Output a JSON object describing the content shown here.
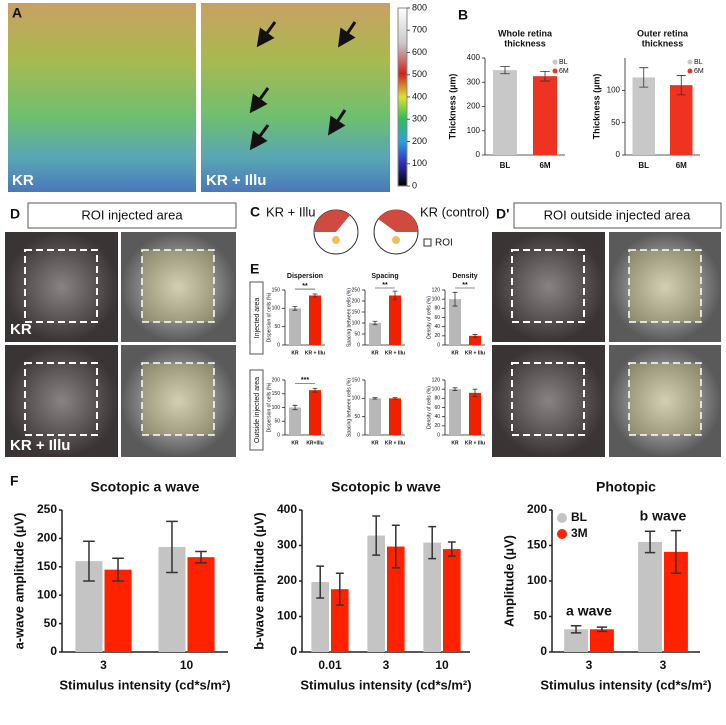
{
  "panels": {
    "a": {
      "label": "A",
      "left_label": "KR",
      "right_label": "KR + Illu"
    },
    "b": {
      "label": "B"
    },
    "c": {
      "label": "C",
      "left": "KR + Illu",
      "right": "KR (control)",
      "roi": "ROI"
    },
    "d": {
      "label": "D",
      "title": "ROI injected area",
      "top": "KR",
      "bottom": "KR + Illu"
    },
    "d_prime": {
      "label": "D'",
      "title": "ROI outside injected area"
    },
    "e": {
      "label": "E",
      "rows": [
        "Injected area",
        "Outside injected area"
      ]
    },
    "f": {
      "label": "F"
    }
  },
  "chart_data": [
    {
      "type": "colorbar",
      "ylim": [
        0,
        800
      ],
      "yticks": [
        0,
        100,
        200,
        300,
        400,
        500,
        600,
        700,
        800
      ]
    },
    {
      "type": "bar",
      "title": [
        "Whole retina",
        "thickness"
      ],
      "ylabel": "Thickness (µm)",
      "categories": [
        "BL",
        "6M"
      ],
      "values": [
        350,
        325
      ],
      "errors": [
        15,
        20
      ],
      "colors": [
        "#c8c8c8",
        "#ee3322"
      ],
      "legend": [
        "BL",
        "6M"
      ],
      "ylim": [
        0,
        400
      ],
      "yticks": [
        0,
        100,
        200,
        300,
        400
      ]
    },
    {
      "type": "bar",
      "title": [
        "Outer retina",
        "thickness"
      ],
      "ylabel": "Thickness (µm)",
      "categories": [
        "BL",
        "6M"
      ],
      "values": [
        120,
        108
      ],
      "errors": [
        15,
        15
      ],
      "colors": [
        "#c8c8c8",
        "#ee3322"
      ],
      "legend": [
        "BL",
        "6M"
      ],
      "ylim": [
        0,
        150
      ],
      "yticks": [
        0,
        50,
        100
      ]
    },
    {
      "type": "bar",
      "title": [
        "Dispersion"
      ],
      "ylabel": "Dispersion of cells (%)",
      "categories": [
        "KR",
        "KR + Illu"
      ],
      "values": [
        100,
        135
      ],
      "errors": [
        5,
        4
      ],
      "colors": [
        "#b8b8b8",
        "#ee2200"
      ],
      "significance": "**",
      "ylim": [
        0,
        150
      ],
      "yticks": [
        0,
        50,
        100,
        150
      ]
    },
    {
      "type": "bar",
      "title": [
        "Spacing"
      ],
      "ylabel": "Spacing between cells (%)",
      "categories": [
        "KR",
        "KR + Illu"
      ],
      "values": [
        100,
        225
      ],
      "errors": [
        8,
        20
      ],
      "colors": [
        "#b8b8b8",
        "#ee2200"
      ],
      "significance": "**",
      "ylim": [
        0,
        250
      ],
      "yticks": [
        0,
        50,
        100,
        150,
        200,
        250
      ]
    },
    {
      "type": "bar",
      "title": [
        "Density"
      ],
      "ylabel": "Density of cells (%)",
      "categories": [
        "KR",
        "KR + Illu"
      ],
      "values": [
        100,
        20
      ],
      "errors": [
        15,
        3
      ],
      "colors": [
        "#b8b8b8",
        "#ee2200"
      ],
      "significance": "**",
      "ylim": [
        0,
        120
      ],
      "yticks": [
        0,
        20,
        40,
        60,
        80,
        100,
        120
      ]
    },
    {
      "type": "bar",
      "ylabel": "Dispersion of cells (%)",
      "categories": [
        "KR",
        "KR+Illu"
      ],
      "values": [
        100,
        163
      ],
      "errors": [
        8,
        7
      ],
      "colors": [
        "#b8b8b8",
        "#ee2200"
      ],
      "significance": "***",
      "ylim": [
        0,
        200
      ],
      "yticks": [
        0,
        50,
        100,
        150,
        200
      ]
    },
    {
      "type": "bar",
      "ylabel": "Spacing between cells (%)",
      "categories": [
        "KR",
        "KR + Illu"
      ],
      "values": [
        100,
        100
      ],
      "errors": [
        2,
        2
      ],
      "colors": [
        "#b8b8b8",
        "#ee2200"
      ],
      "ylim": [
        0,
        150
      ],
      "yticks": [
        0,
        50,
        100,
        150
      ]
    },
    {
      "type": "bar",
      "ylabel": "Density of cells (%)",
      "categories": [
        "KR",
        "KR + Illu"
      ],
      "values": [
        100,
        92
      ],
      "errors": [
        3,
        8
      ],
      "colors": [
        "#b8b8b8",
        "#ee2200"
      ],
      "ylim": [
        0,
        120
      ],
      "yticks": [
        0,
        20,
        40,
        60,
        80,
        100,
        120
      ]
    },
    {
      "type": "bar",
      "title": [
        "Scotopic a wave"
      ],
      "ylabel": "a-wave amplitude (µV)",
      "xlabel": "Stimulus intensity  (cd*s/m²)",
      "categories": [
        "3",
        "10"
      ],
      "series": [
        {
          "color": "#c4c4c4",
          "values": [
            160,
            185
          ],
          "errors": [
            35,
            45
          ]
        },
        {
          "color": "#ff2200",
          "values": [
            145,
            167
          ],
          "errors": [
            20,
            10
          ]
        }
      ],
      "ylim": [
        0,
        250
      ],
      "yticks": [
        0,
        50,
        100,
        150,
        200,
        250
      ]
    },
    {
      "type": "bar",
      "title": [
        "Scotopic b wave"
      ],
      "ylabel": "b-wave amplitude (µV)",
      "xlabel": "Stimulus intensity  (cd*s/m²)",
      "categories": [
        "0.01",
        "3",
        "10"
      ],
      "series": [
        {
          "color": "#c4c4c4",
          "values": [
            197,
            328,
            308
          ],
          "errors": [
            45,
            55,
            45
          ]
        },
        {
          "color": "#ff2200",
          "values": [
            177,
            297,
            290
          ],
          "errors": [
            45,
            60,
            20
          ]
        }
      ],
      "ylim": [
        0,
        400
      ],
      "yticks": [
        0,
        100,
        200,
        300,
        400
      ]
    },
    {
      "type": "bar",
      "title": [
        "Photopic"
      ],
      "ylabel": "Amplitude (µV)",
      "xlabel": "Stimulus intensity  (cd*s/m²)",
      "categories": [
        "3",
        "3"
      ],
      "group_labels": [
        "a wave",
        "b wave"
      ],
      "series": [
        {
          "name": "BL",
          "color": "#c4c4c4",
          "values": [
            32,
            155
          ],
          "errors": [
            5,
            15
          ]
        },
        {
          "name": "3M",
          "color": "#ff2200",
          "values": [
            32,
            141
          ],
          "errors": [
            3,
            30
          ]
        }
      ],
      "ylim": [
        0,
        200
      ],
      "yticks": [
        0,
        50,
        100,
        150,
        200
      ]
    }
  ]
}
